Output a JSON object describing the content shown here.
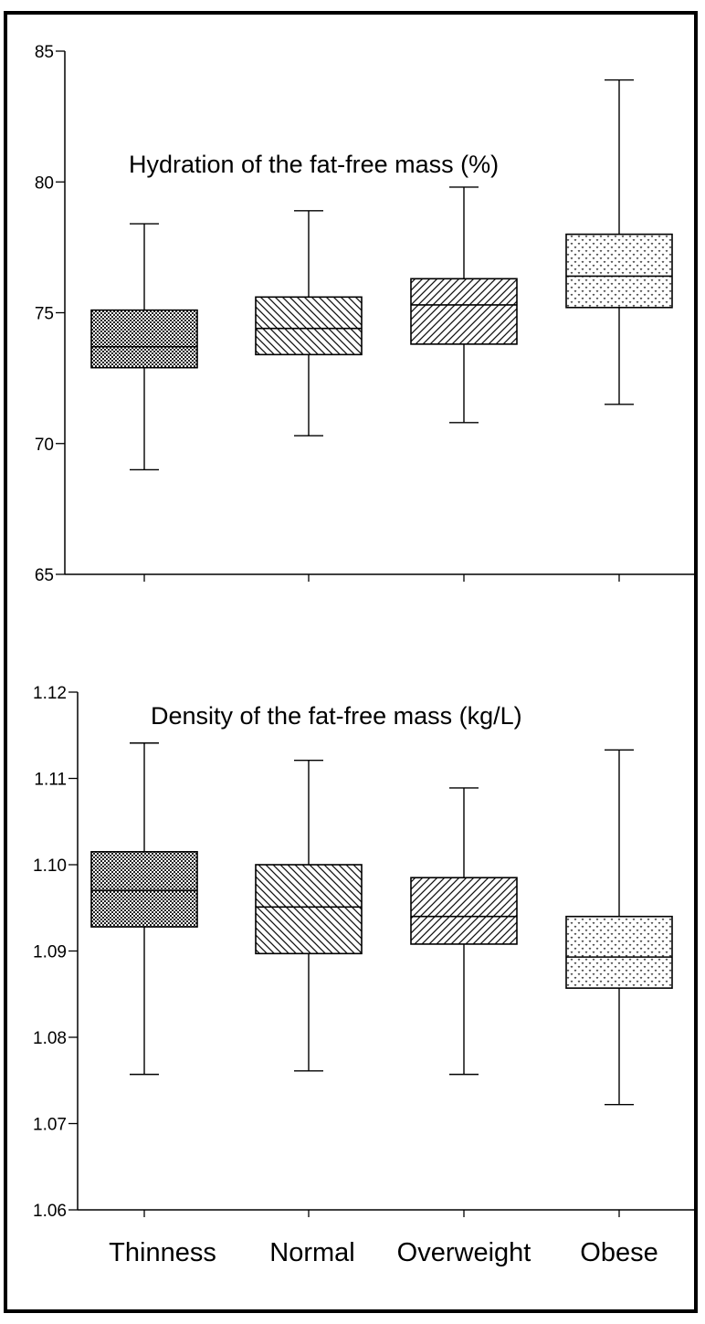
{
  "chart_data": [
    {
      "type": "boxplot",
      "title": "Hydration of the fat-free mass (%)",
      "categories": [
        "Thinness",
        "Normal",
        "Overweight",
        "Obese"
      ],
      "ylim": [
        65,
        85
      ],
      "yticks": [
        "65",
        "70",
        "75",
        "80",
        "85"
      ],
      "grid": false,
      "boxes": [
        {
          "min": 69.0,
          "q1": 72.9,
          "median": 73.7,
          "q3": 75.1,
          "max": 78.4,
          "pattern": "checker"
        },
        {
          "min": 70.3,
          "q1": 73.4,
          "median": 74.4,
          "q3": 75.6,
          "max": 78.9,
          "pattern": "diag-back"
        },
        {
          "min": 70.8,
          "q1": 73.8,
          "median": 75.3,
          "q3": 76.3,
          "max": 79.8,
          "pattern": "diag-fwd"
        },
        {
          "min": 71.5,
          "q1": 75.2,
          "median": 76.4,
          "q3": 78.0,
          "max": 83.9,
          "pattern": "dots"
        }
      ]
    },
    {
      "type": "boxplot",
      "title": "Density of the fat-free mass (kg/L)",
      "categories": [
        "Thinness",
        "Normal",
        "Overweight",
        "Obese"
      ],
      "ylim": [
        1.06,
        1.12
      ],
      "yticks": [
        "1.06",
        "1.07",
        "1.08",
        "1.09",
        "1.10",
        "1.11",
        "1.12"
      ],
      "grid": false,
      "boxes": [
        {
          "min": 1.0757,
          "q1": 1.0928,
          "median": 1.097,
          "q3": 1.1015,
          "max": 1.1141,
          "pattern": "checker"
        },
        {
          "min": 1.0761,
          "q1": 1.0897,
          "median": 1.0951,
          "q3": 1.1,
          "max": 1.1121,
          "pattern": "diag-back"
        },
        {
          "min": 1.0757,
          "q1": 1.0908,
          "median": 1.094,
          "q3": 1.0985,
          "max": 1.1089,
          "pattern": "diag-fwd"
        },
        {
          "min": 1.0722,
          "q1": 1.0857,
          "median": 1.0893,
          "q3": 1.094,
          "max": 1.1133,
          "pattern": "dots"
        }
      ]
    }
  ]
}
